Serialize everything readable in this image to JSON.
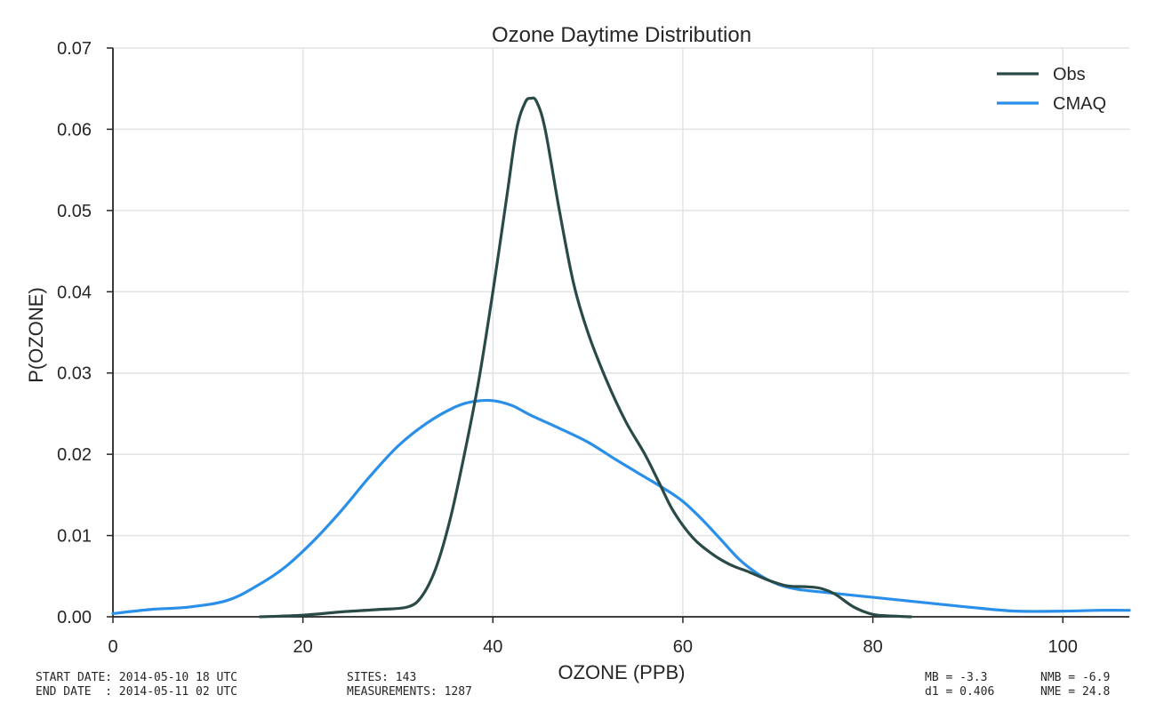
{
  "chart_data": {
    "type": "line",
    "title": "Ozone Daytime Distribution",
    "xlabel": "OZONE  (PPB)",
    "ylabel": "P(OZONE)",
    "xlim": [
      0,
      107
    ],
    "ylim": [
      0,
      0.07
    ],
    "x_ticks": [
      0,
      20,
      40,
      60,
      80,
      100
    ],
    "y_ticks": [
      0.0,
      0.01,
      0.02,
      0.03,
      0.04,
      0.05,
      0.06,
      0.07
    ],
    "grid": true,
    "legend_position": "top-right",
    "series": [
      {
        "name": "Obs",
        "color": "#2a4a48",
        "points": [
          [
            15.5,
            0
          ],
          [
            20,
            0.0002
          ],
          [
            24,
            0.0006
          ],
          [
            28,
            0.0009
          ],
          [
            31,
            0.0012
          ],
          [
            32.5,
            0.0025
          ],
          [
            34,
            0.006
          ],
          [
            35.5,
            0.012
          ],
          [
            37,
            0.02
          ],
          [
            38.5,
            0.029
          ],
          [
            40,
            0.04
          ],
          [
            41.5,
            0.052
          ],
          [
            42.5,
            0.06
          ],
          [
            43.4,
            0.0633
          ],
          [
            44,
            0.0638
          ],
          [
            44.6,
            0.0634
          ],
          [
            45.5,
            0.06
          ],
          [
            47,
            0.05
          ],
          [
            48.5,
            0.041
          ],
          [
            50,
            0.035
          ],
          [
            52,
            0.029
          ],
          [
            54,
            0.024
          ],
          [
            56,
            0.02
          ],
          [
            57.5,
            0.0165
          ],
          [
            59,
            0.013
          ],
          [
            61,
            0.0098
          ],
          [
            63,
            0.0078
          ],
          [
            65,
            0.0064
          ],
          [
            67,
            0.0055
          ],
          [
            69,
            0.0045
          ],
          [
            71,
            0.0038
          ],
          [
            73,
            0.0037
          ],
          [
            74.5,
            0.0035
          ],
          [
            76,
            0.0028
          ],
          [
            78,
            0.0012
          ],
          [
            80,
            0.0003
          ],
          [
            82,
            0.0001
          ],
          [
            84,
            0
          ]
        ]
      },
      {
        "name": "CMAQ",
        "color": "#2a8fe8",
        "points": [
          [
            0,
            0.0004
          ],
          [
            4,
            0.0009
          ],
          [
            8,
            0.0012
          ],
          [
            12,
            0.002
          ],
          [
            15,
            0.0037
          ],
          [
            18,
            0.006
          ],
          [
            21,
            0.0092
          ],
          [
            24,
            0.013
          ],
          [
            27,
            0.0172
          ],
          [
            30,
            0.021
          ],
          [
            33,
            0.0238
          ],
          [
            36,
            0.0258
          ],
          [
            38,
            0.0265
          ],
          [
            40,
            0.0266
          ],
          [
            42,
            0.026
          ],
          [
            44,
            0.0248
          ],
          [
            47,
            0.0232
          ],
          [
            50,
            0.0215
          ],
          [
            53,
            0.0193
          ],
          [
            56,
            0.0172
          ],
          [
            58,
            0.0158
          ],
          [
            60,
            0.0142
          ],
          [
            62,
            0.012
          ],
          [
            64,
            0.0095
          ],
          [
            66,
            0.007
          ],
          [
            68,
            0.0052
          ],
          [
            70,
            0.004
          ],
          [
            72,
            0.0034
          ],
          [
            75,
            0.003
          ],
          [
            80,
            0.0024
          ],
          [
            85,
            0.0018
          ],
          [
            90,
            0.0012
          ],
          [
            95,
            0.0007
          ],
          [
            100,
            0.0007
          ],
          [
            104,
            0.0008
          ],
          [
            107,
            0.0008
          ]
        ]
      }
    ]
  },
  "footer": {
    "start_date": "START DATE: 2014-05-10 18 UTC",
    "end_date": "END DATE  : 2014-05-11 02 UTC",
    "sites": "SITES: 143",
    "measurements": "MEASUREMENTS: 1287",
    "mb": "MB = -3.3",
    "nmb": "NMB = -6.9",
    "d1": "d1 = 0.406",
    "nme": "NME = 24.8"
  }
}
